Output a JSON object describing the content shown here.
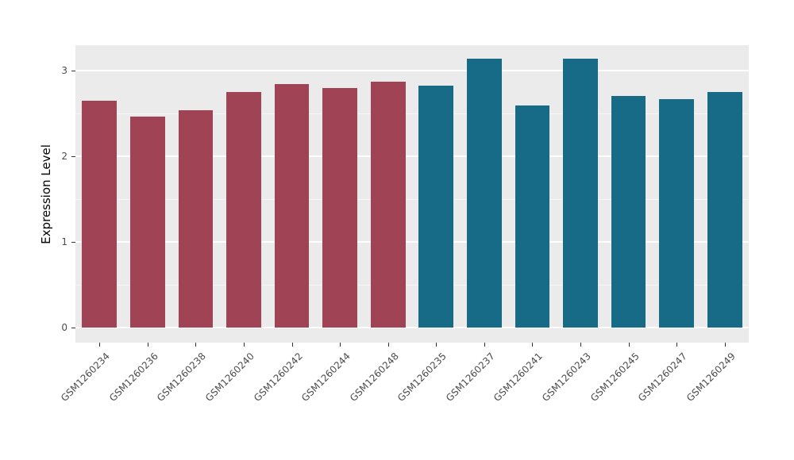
{
  "chart_data": {
    "type": "bar",
    "title": "",
    "xlabel": "",
    "ylabel": "Expression Level",
    "categories": [
      "GSM1260234",
      "GSM1260236",
      "GSM1260238",
      "GSM1260240",
      "GSM1260242",
      "GSM1260244",
      "GSM1260248",
      "GSM1260235",
      "GSM1260237",
      "GSM1260241",
      "GSM1260243",
      "GSM1260245",
      "GSM1260247",
      "GSM1260249"
    ],
    "values": [
      2.65,
      2.47,
      2.54,
      2.75,
      2.85,
      2.8,
      2.87,
      2.83,
      3.14,
      2.6,
      3.14,
      2.71,
      2.67,
      2.75
    ],
    "bar_colors": [
      "#A04455",
      "#A04455",
      "#A04455",
      "#A04455",
      "#A04455",
      "#A04455",
      "#A04455",
      "#176B87",
      "#176B87",
      "#176B87",
      "#176B87",
      "#176B87",
      "#176B87",
      "#176B87"
    ],
    "groups": [
      {
        "name": "group-red",
        "color": "#A04455",
        "count": 7
      },
      {
        "name": "group-teal",
        "color": "#176B87",
        "count": 7
      }
    ],
    "y_major_ticks": [
      0,
      1,
      2,
      3
    ],
    "y_major_tick_labels": [
      "0",
      "1",
      "2",
      "3"
    ],
    "y_minor_ticks": [
      0.5,
      1.5,
      2.5
    ],
    "axis_range": [
      -0.175,
      3.3
    ],
    "ylim": [
      0,
      3.3
    ],
    "grid": "on",
    "legend": "none",
    "panel_background": "#EBEBEB",
    "gridline_color": "#FFFFFF",
    "tick_text_color": "#4D4D4D"
  }
}
